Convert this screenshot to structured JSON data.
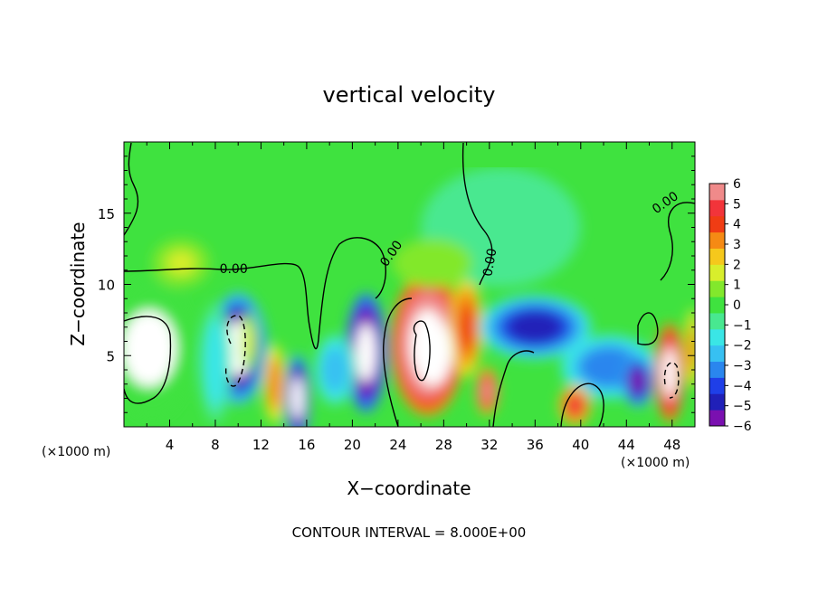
{
  "chart_data": {
    "type": "heatmap",
    "title": "vertical velocity",
    "xlabel": "X−coordinate",
    "ylabel": "Z−coordinate",
    "x_unit_left": "(×1000 m)",
    "x_unit_right": "(×1000 m)",
    "footer": "CONTOUR INTERVAL = 8.000E+00",
    "xlim": [
      0,
      50
    ],
    "ylim": [
      0,
      20
    ],
    "x_ticks": [
      4,
      8,
      12,
      16,
      20,
      24,
      28,
      32,
      36,
      40,
      44,
      48
    ],
    "y_ticks": [
      5,
      10,
      15
    ],
    "colorbar": {
      "min": -6,
      "max": 6,
      "tick_labels": [
        "6",
        "5",
        "4",
        "3",
        "2",
        "1",
        "0",
        "−1",
        "−2",
        "−3",
        "−4",
        "−5",
        "−6"
      ],
      "colors": [
        "#7a10b0",
        "#2020b8",
        "#1f3fe8",
        "#2a86ee",
        "#37c0f2",
        "#3ae6e6",
        "#48e890",
        "#3fe23f",
        "#82e82c",
        "#d8ee2c",
        "#f5c81c",
        "#f58a14",
        "#f03c14",
        "#f2343a",
        "#f08a8a"
      ]
    },
    "contour_labels": [
      {
        "text": "0.00",
        "x": 9.6,
        "y": 10.8
      },
      {
        "text": "0.00",
        "x": 23.7,
        "y": 12.0
      },
      {
        "text": "0.00",
        "x": 32.4,
        "y": 11.5
      },
      {
        "text": "0.00",
        "x": 47.6,
        "y": 15.5
      }
    ],
    "features": [
      {
        "x": 2.5,
        "z": 5.5,
        "w": 0.2,
        "sx": 2.5,
        "sz": 3.5,
        "clip": 8
      },
      {
        "x": 10.0,
        "z": 5.5,
        "w": -6.5,
        "sx": 1.8,
        "sz": 2.8
      },
      {
        "x": 11.0,
        "z": 6.0,
        "w": 1.5,
        "sx": 0.5,
        "sz": 1.5
      },
      {
        "x": 13.2,
        "z": 3.0,
        "w": 3.5,
        "sx": 0.7,
        "sz": 2.0
      },
      {
        "x": 15.2,
        "z": 2.0,
        "w": -7.0,
        "sx": 0.8,
        "sz": 2.2
      },
      {
        "x": 21.2,
        "z": 5.2,
        "w": -7.5,
        "sx": 1.3,
        "sz": 3.0
      },
      {
        "x": 26.6,
        "z": 5.8,
        "w": 7.5,
        "sx": 2.3,
        "sz": 3.6
      },
      {
        "x": 30.0,
        "z": 7.0,
        "w": 4.0,
        "sx": 1.0,
        "sz": 2.5
      },
      {
        "x": 31.8,
        "z": 2.5,
        "w": 5.5,
        "sx": 0.7,
        "sz": 1.2
      },
      {
        "x": 36.0,
        "z": 7.0,
        "w": -4.5,
        "sx": 3.5,
        "sz": 1.6
      },
      {
        "x": 42.5,
        "z": 4.2,
        "w": -3.5,
        "sx": 3.0,
        "sz": 1.6
      },
      {
        "x": 39.5,
        "z": 1.5,
        "w": 5.0,
        "sx": 1.0,
        "sz": 1.0
      },
      {
        "x": 45.0,
        "z": 3.2,
        "w": -5.5,
        "sx": 1.0,
        "sz": 1.3
      },
      {
        "x": 47.8,
        "z": 3.8,
        "w": 7.0,
        "sx": 0.9,
        "sz": 2.5
      },
      {
        "x": 49.8,
        "z": 5.5,
        "w": 3.0,
        "sx": 0.5,
        "sz": 2.0
      },
      {
        "x": 8.0,
        "z": 4.5,
        "w": -2.0,
        "sx": 1.0,
        "sz": 3.0
      },
      {
        "x": 18.5,
        "z": 4.0,
        "w": -2.5,
        "sx": 1.3,
        "sz": 1.8
      },
      {
        "x": 33.0,
        "z": 14.0,
        "w": -1.0,
        "sx": 5.0,
        "sz": 3.0
      },
      {
        "x": 5.0,
        "z": 11.5,
        "w": 1.2,
        "sx": 1.8,
        "sz": 1.2
      },
      {
        "x": 27.0,
        "z": 11.5,
        "w": 1.0,
        "sx": 2.5,
        "sz": 1.2
      }
    ]
  }
}
